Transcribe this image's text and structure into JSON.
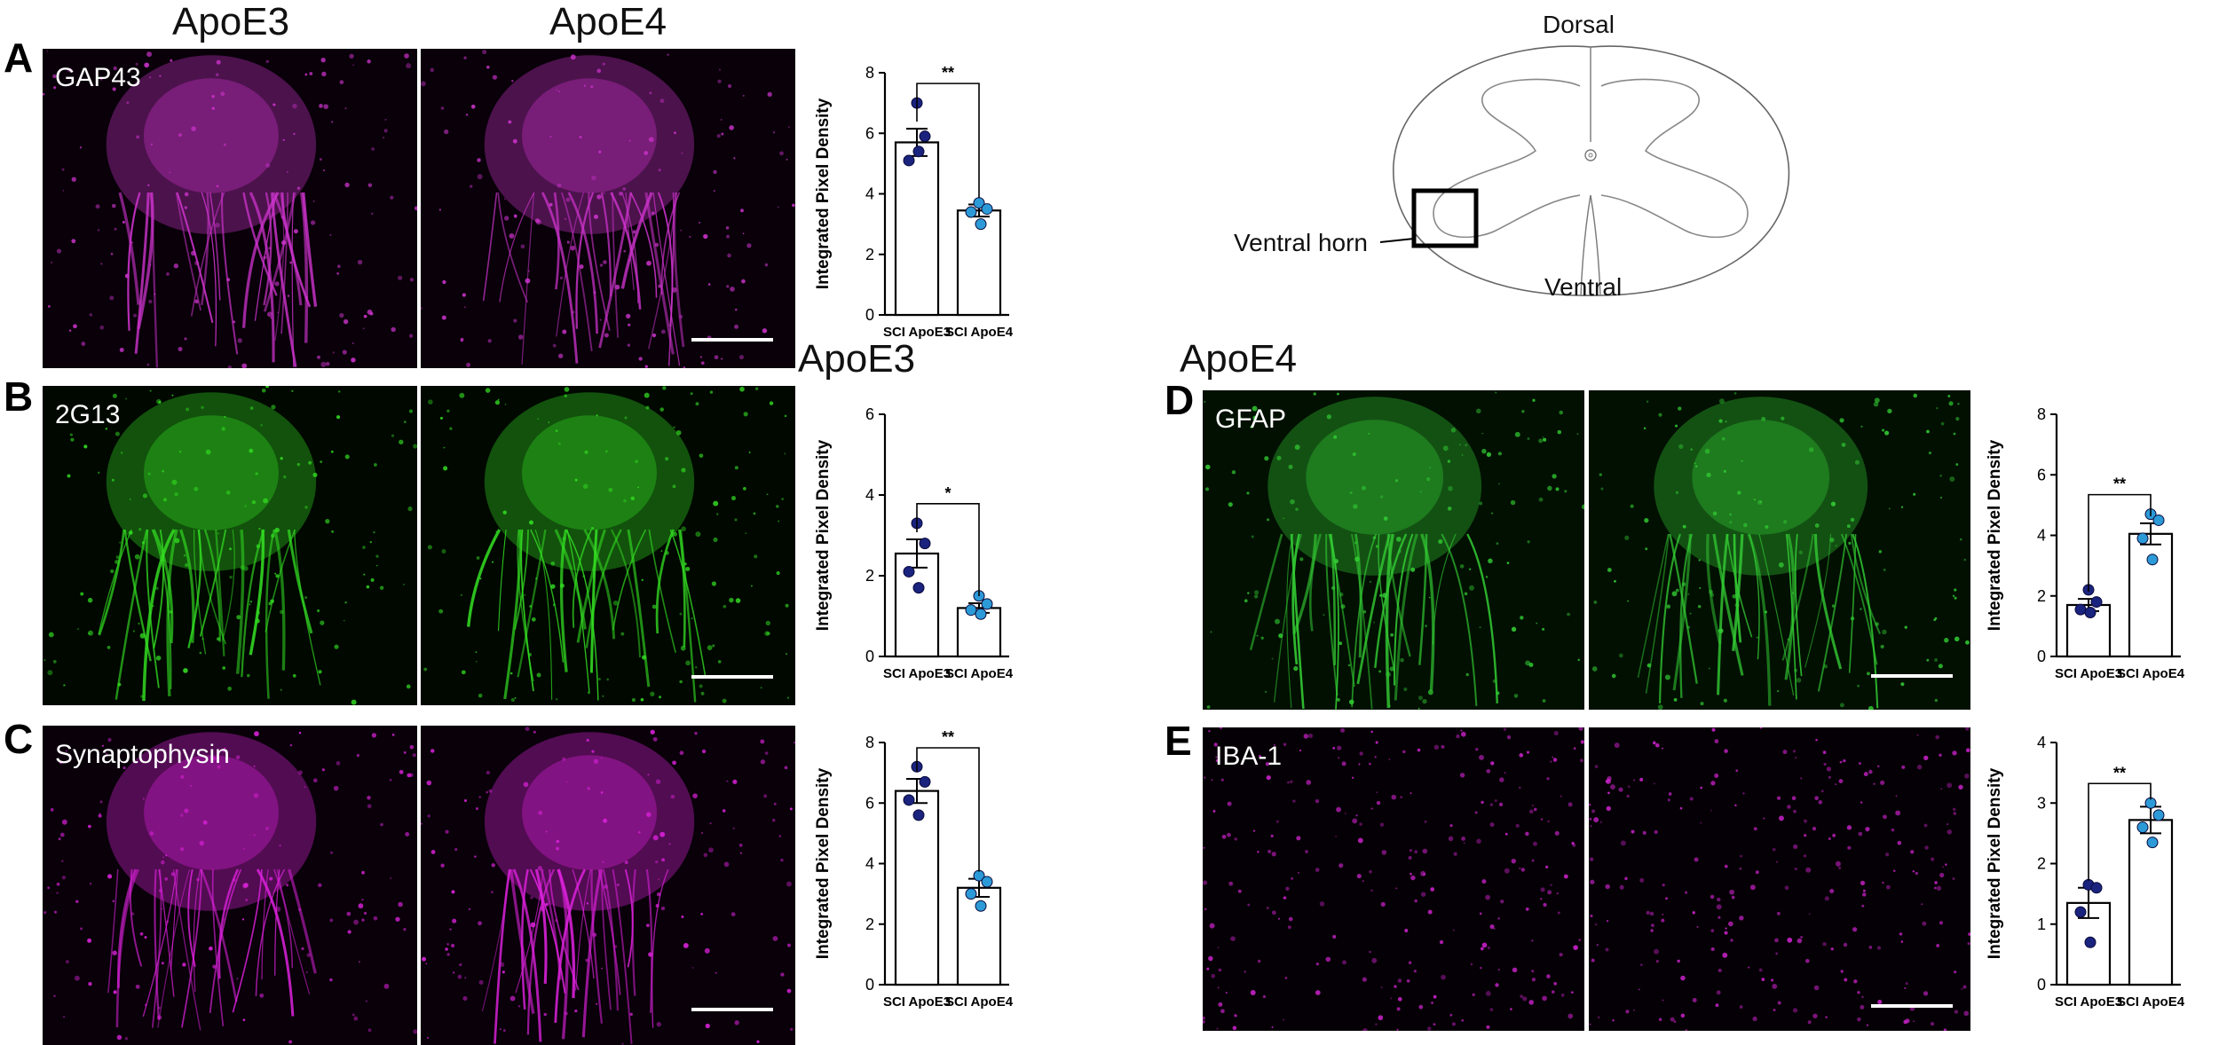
{
  "columns": {
    "left_apoe3": "ApoE3",
    "left_apoe4": "ApoE4",
    "right_apoe3": "ApoE3",
    "right_apoe4": "ApoE4"
  },
  "schematic": {
    "dorsal": "Dorsal",
    "ventral": "Ventral",
    "ventral_horn": "Ventral horn"
  },
  "panels": [
    {
      "letter": "A",
      "marker": "GAP43",
      "stain": "#cc33cc",
      "chart": {
        "type": "bar",
        "ylabel": "Integrated Pixel Density",
        "categories": [
          "SCI ApoE3",
          "SCI ApoE4"
        ],
        "ylim": [
          0,
          8
        ],
        "yticks": [
          0,
          2,
          4,
          6,
          8
        ],
        "significance": "**",
        "series": [
          {
            "values": [
              5.7,
              3.45
            ],
            "sem": [
              0.45,
              0.2
            ]
          }
        ],
        "points": [
          [
            7.0,
            5.9,
            5.1,
            5.4
          ],
          [
            3.7,
            3.5,
            3.4,
            3.0
          ]
        ]
      }
    },
    {
      "letter": "B",
      "marker": "2G13",
      "stain": "#33dd22",
      "chart": {
        "type": "bar",
        "ylabel": "Integrated Pixel Density",
        "categories": [
          "SCI ApoE3",
          "SCI ApoE4"
        ],
        "ylim": [
          0,
          6
        ],
        "yticks": [
          0,
          2,
          4,
          6
        ],
        "significance": "*",
        "series": [
          {
            "values": [
              2.55,
              1.2
            ],
            "sem": [
              0.35,
              0.12
            ]
          }
        ],
        "points": [
          [
            3.3,
            2.8,
            2.1,
            1.7
          ],
          [
            1.5,
            1.3,
            1.15,
            1.05
          ]
        ]
      }
    },
    {
      "letter": "C",
      "marker": "Synaptophysin",
      "stain": "#dd22dd",
      "chart": {
        "type": "bar",
        "ylabel": "Integrated Pixel Density",
        "categories": [
          "SCI ApoE3",
          "SCI ApoE4"
        ],
        "ylim": [
          0,
          8
        ],
        "yticks": [
          0,
          2,
          4,
          6,
          8
        ],
        "significance": "**",
        "series": [
          {
            "values": [
              6.4,
              3.2
            ],
            "sem": [
              0.4,
              0.3
            ]
          }
        ],
        "points": [
          [
            7.2,
            6.7,
            6.1,
            5.6
          ],
          [
            3.6,
            3.4,
            3.0,
            2.6
          ]
        ]
      }
    },
    {
      "letter": "D",
      "marker": "GFAP",
      "stain": "#33cc33",
      "chart": {
        "type": "bar",
        "ylabel": "Integrated Pixel Density",
        "categories": [
          "SCI ApoE3",
          "SCI ApoE4"
        ],
        "ylim": [
          0,
          8
        ],
        "yticks": [
          0,
          2,
          4,
          6,
          8
        ],
        "significance": "**",
        "series": [
          {
            "values": [
              1.7,
              4.05
            ],
            "sem": [
              0.2,
              0.35
            ]
          }
        ],
        "points": [
          [
            2.2,
            1.8,
            1.55,
            1.45
          ],
          [
            4.7,
            4.5,
            3.9,
            3.2
          ]
        ]
      }
    },
    {
      "letter": "E",
      "marker": "IBA-1",
      "stain": "#cc22cc",
      "chart": {
        "type": "bar",
        "ylabel": "Integrated Pixel Density",
        "categories": [
          "SCI ApoE3",
          "SCI ApoE4"
        ],
        "ylim": [
          0,
          4
        ],
        "yticks": [
          0,
          1,
          2,
          3,
          4
        ],
        "significance": "**",
        "series": [
          {
            "values": [
              1.35,
              2.72
            ],
            "sem": [
              0.25,
              0.22
            ]
          }
        ],
        "points": [
          [
            1.65,
            1.6,
            1.2,
            0.7
          ],
          [
            3.0,
            2.8,
            2.6,
            2.35
          ]
        ]
      }
    }
  ]
}
